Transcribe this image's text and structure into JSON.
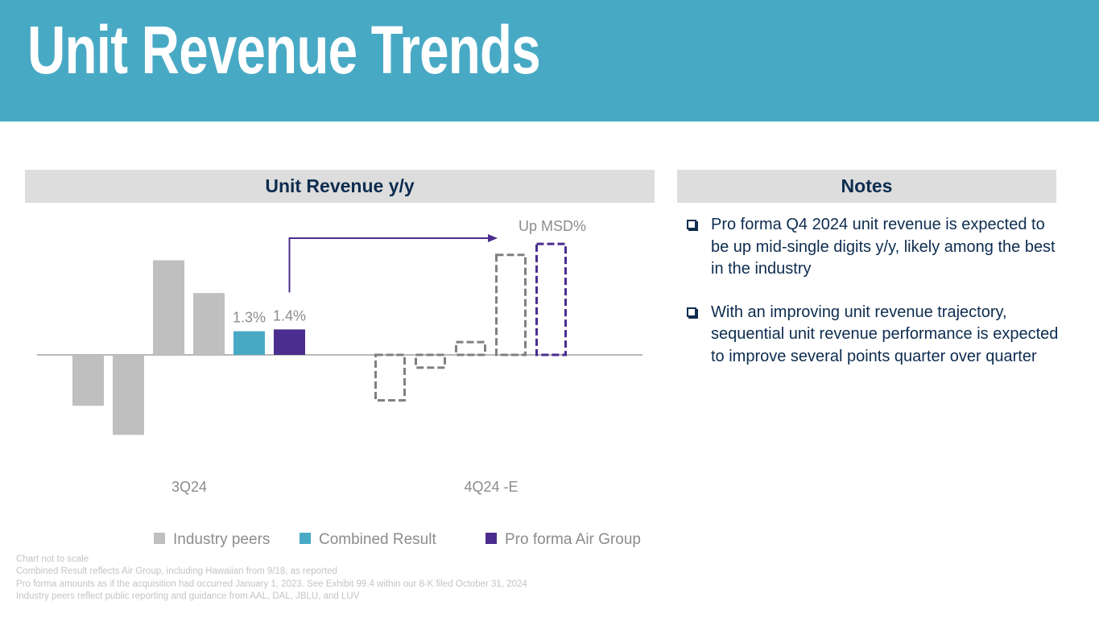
{
  "header": {
    "title": "Unit Revenue Trends"
  },
  "chart_panel": {
    "title": "Unit Revenue y/y"
  },
  "notes_panel": {
    "title": "Notes",
    "items": [
      "Pro forma Q4 2024 unit revenue is expected to be up mid-single digits y/y, likely among the best in the industry",
      "With an improving unit revenue trajectory, sequential unit revenue performance is expected to improve several points quarter over quarter"
    ]
  },
  "footnotes": [
    "Chart not to scale",
    "Combined Result reflects Air Group, including Hawaiian from 9/18, as reported",
    "Pro forma amounts as if the acquisition had occurred January 1, 2023. See Exhibit 99.4 within our 8-K filed October 31, 2024",
    "Industry peers reflect public reporting and guidance from AAL, DAL, JBLU, and LUV"
  ],
  "colors": {
    "banner": "#48a9c5",
    "industry": "#bfbfbf",
    "combined": "#48a9c5",
    "proforma": "#4b2d8f",
    "dashed_gray": "#808080",
    "navy": "#0d2c4f"
  },
  "chart_data": {
    "type": "bar",
    "note": "Chart not to scale",
    "categories": [
      "3Q24",
      "4Q24 -E"
    ],
    "annotation": "Up MSD%",
    "groups": [
      {
        "category": "3Q24",
        "estimated": false,
        "bars": [
          {
            "series": "Industry peers",
            "value": -2.8
          },
          {
            "series": "Industry peers",
            "value": -4.4
          },
          {
            "series": "Industry peers",
            "value": 5.2
          },
          {
            "series": "Industry peers",
            "value": 3.4
          },
          {
            "series": "Combined Result",
            "value": 1.3,
            "label": "1.3%"
          },
          {
            "series": "Pro forma Air Group",
            "value": 1.4,
            "label": "1.4%"
          }
        ]
      },
      {
        "category": "4Q24 -E",
        "estimated": true,
        "bars": [
          {
            "series": "Industry peers",
            "value": -2.5
          },
          {
            "series": "Industry peers",
            "value": -0.7
          },
          {
            "series": "Industry peers",
            "value": 0.7
          },
          {
            "series": "Industry peers",
            "value": 5.5
          },
          {
            "series": "Pro forma Air Group",
            "value": 6.1
          }
        ]
      }
    ],
    "legend": [
      "Industry peers",
      "Combined Result",
      "Pro forma Air Group"
    ],
    "legend_position": "bottom"
  }
}
